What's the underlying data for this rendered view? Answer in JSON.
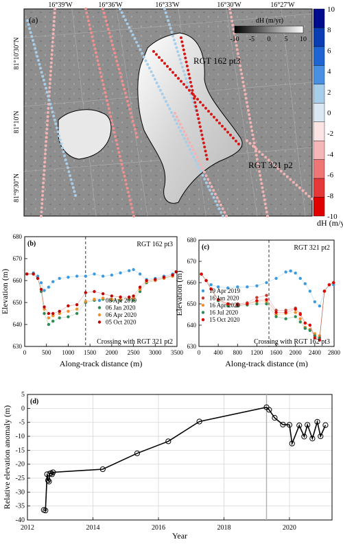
{
  "figure": {
    "panel_a": {
      "label": "(a)",
      "top_lon_labels": [
        "16°39'W",
        "16°36'W",
        "16°33'W",
        "16°30'W",
        "16°27'W"
      ],
      "left_lat_labels": [
        "81°10'30\"N",
        "81°10'N",
        "81°9'30\"N"
      ],
      "inset_colorbar_title": "dH (m/yr)",
      "inset_colorbar_ticks": [
        "-10",
        "-5",
        "0",
        "5",
        "10"
      ],
      "track_label_1": "RGT 162 pt3",
      "track_label_2": "RGT 321 p2",
      "colorbar_ticks": [
        "10",
        "8",
        "6",
        "4",
        "2",
        "0",
        "-2",
        "-4",
        "-6",
        "-8",
        "-10"
      ],
      "colorbar_colors": [
        "#000a8c",
        "#0a3cb4",
        "#1e64d2",
        "#4a90e2",
        "#a8cde9",
        "#d9e8f3",
        "#fbe4e4",
        "#f4b6b6",
        "#ee7676",
        "#e63838",
        "#e00000"
      ],
      "colorbar_title": "dH (m/yr)"
    }
  },
  "chart_data": [
    {
      "type": "scatter",
      "panel": "(b)",
      "annotation": "RGT 162 pt3",
      "crossing_label": "Crossing with RGT 321 pt2",
      "crossing_x": 1400,
      "xlabel": "Along-track distance (m)",
      "ylabel": "Elevation (m)",
      "xlim": [
        0,
        3500
      ],
      "ylim": [
        630,
        680
      ],
      "xticks": [
        0,
        500,
        1000,
        1500,
        2000,
        2500,
        3000,
        3500
      ],
      "yticks": [
        630,
        640,
        650,
        660,
        670,
        680
      ],
      "legend_position": "bottom-right",
      "series": [
        {
          "name": "08 Apr 2019",
          "color": "#3a9be0",
          "points": [
            [
              50,
              663
            ],
            [
              200,
              663.5
            ],
            [
              300,
              662
            ],
            [
              380,
              659
            ],
            [
              450,
              655.5
            ],
            [
              550,
              657
            ],
            [
              650,
              659.5
            ],
            [
              800,
              661
            ],
            [
              1000,
              661.5
            ],
            [
              1200,
              662
            ],
            [
              1400,
              662
            ],
            [
              1600,
              663
            ],
            [
              1800,
              662
            ],
            [
              2000,
              662.5
            ],
            [
              2200,
              663.5
            ],
            [
              2400,
              664.5
            ],
            [
              2500,
              665
            ],
            [
              2650,
              663
            ],
            [
              2800,
              660.5
            ],
            [
              3000,
              661
            ],
            [
              3200,
              662
            ],
            [
              3400,
              663
            ],
            [
              3480,
              664
            ]
          ]
        },
        {
          "name": "06 Jan 2020",
          "color": "#2e8b57",
          "points": [
            [
              50,
              663
            ],
            [
              200,
              663
            ],
            [
              300,
              661
            ],
            [
              380,
              655
            ],
            [
              450,
              645
            ],
            [
              550,
              640
            ],
            [
              650,
              641.5
            ],
            [
              800,
              643
            ],
            [
              1000,
              643.5
            ],
            [
              1200,
              645
            ],
            [
              1400,
              650
            ],
            [
              1600,
              651
            ],
            [
              1800,
              651.5
            ],
            [
              2000,
              651
            ],
            [
              2200,
              651
            ],
            [
              2400,
              651.5
            ],
            [
              2500,
              651
            ],
            [
              2650,
              655
            ],
            [
              2800,
              659
            ],
            [
              3000,
              660
            ],
            [
              3200,
              661
            ],
            [
              3400,
              662
            ],
            [
              3480,
              664
            ]
          ]
        },
        {
          "name": "06 Apr 2020",
          "color": "#f28c28",
          "points": [
            [
              50,
              663
            ],
            [
              200,
              663
            ],
            [
              300,
              661
            ],
            [
              380,
              656
            ],
            [
              450,
              647
            ],
            [
              550,
              643
            ],
            [
              650,
              644
            ],
            [
              800,
              645
            ],
            [
              1000,
              646
            ],
            [
              1200,
              647
            ],
            [
              1400,
              650.5
            ],
            [
              1600,
              651.5
            ],
            [
              1800,
              652
            ],
            [
              2000,
              651.5
            ],
            [
              2200,
              651.5
            ],
            [
              2400,
              652
            ],
            [
              2500,
              652
            ],
            [
              2650,
              656
            ],
            [
              2800,
              659.5
            ],
            [
              3000,
              660
            ],
            [
              3200,
              661
            ],
            [
              3400,
              662
            ],
            [
              3480,
              664
            ]
          ]
        },
        {
          "name": "05 Oct 2020",
          "color": "#c00000",
          "points": [
            [
              50,
              663
            ],
            [
              200,
              663
            ],
            [
              300,
              661
            ],
            [
              380,
              656
            ],
            [
              450,
              648
            ],
            [
              550,
              645
            ],
            [
              650,
              645
            ],
            [
              800,
              646
            ],
            [
              1000,
              648.5
            ],
            [
              1200,
              649
            ],
            [
              1400,
              654.5
            ],
            [
              1600,
              655
            ],
            [
              1800,
              654
            ],
            [
              2000,
              653
            ],
            [
              2200,
              652.5
            ],
            [
              2400,
              652.5
            ],
            [
              2500,
              653
            ],
            [
              2650,
              657
            ],
            [
              2800,
              660
            ],
            [
              3000,
              660.5
            ],
            [
              3200,
              661.5
            ],
            [
              3400,
              662.5
            ],
            [
              3480,
              664
            ]
          ]
        }
      ]
    },
    {
      "type": "scatter",
      "panel": "(c)",
      "annotation": "RGT 321 pt2",
      "crossing_label": "Crossing with RGT 162 pt3",
      "crossing_x": 1450,
      "xlabel": "Along-track distance (m)",
      "ylabel": "Elevation (m)",
      "xlim": [
        0,
        2800
      ],
      "ylim": [
        630,
        680
      ],
      "xticks": [
        0,
        400,
        800,
        1200,
        1600,
        2000,
        2400,
        2800
      ],
      "yticks": [
        630,
        640,
        650,
        660,
        670,
        680
      ],
      "legend_position": "bottom-left",
      "series": [
        {
          "name": "19 Apr 2019",
          "color": "#3a9be0",
          "points": [
            [
              50,
              664
            ],
            [
              150,
              661
            ],
            [
              250,
              659
            ],
            [
              400,
              658
            ],
            [
              600,
              657.5
            ],
            [
              800,
              658
            ],
            [
              1000,
              658
            ],
            [
              1200,
              658.5
            ],
            [
              1400,
              660
            ],
            [
              1600,
              662
            ],
            [
              1800,
              665
            ],
            [
              1900,
              665.5
            ],
            [
              2000,
              664.5
            ],
            [
              2100,
              662
            ],
            [
              2200,
              659.5
            ],
            [
              2300,
              656
            ],
            [
              2400,
              651
            ],
            [
              2500,
              649
            ],
            [
              2600,
              656
            ],
            [
              2700,
              659
            ],
            [
              2790,
              659
            ]
          ]
        },
        {
          "name": "16 Jan 2020",
          "color": "#c0392b",
          "points": [
            [
              50,
              664
            ],
            [
              150,
              661
            ],
            [
              250,
              657
            ],
            [
              400,
              652
            ],
            [
              600,
              650
            ],
            [
              800,
              650
            ],
            [
              1000,
              650.5
            ],
            [
              1200,
              653
            ],
            [
              1400,
              654
            ],
            [
              1600,
              647
            ],
            [
              1800,
              647
            ],
            [
              2000,
              648
            ],
            [
              2100,
              645.5
            ],
            [
              2200,
              641
            ],
            [
              2300,
              640
            ],
            [
              2400,
              635
            ],
            [
              2500,
              634
            ],
            [
              2600,
              656
            ],
            [
              2700,
              659
            ],
            [
              2790,
              660
            ]
          ]
        },
        {
          "name": "16 Apr 2020",
          "color": "#f28c28",
          "points": [
            [
              50,
              664
            ],
            [
              150,
              661
            ],
            [
              250,
              657
            ],
            [
              400,
              652
            ],
            [
              600,
              649.5
            ],
            [
              800,
              649.5
            ],
            [
              1000,
              650
            ],
            [
              1200,
              651
            ],
            [
              1400,
              651
            ],
            [
              1600,
              645
            ],
            [
              1800,
              645.5
            ],
            [
              2000,
              646
            ],
            [
              2100,
              643
            ],
            [
              2200,
              639
            ],
            [
              2300,
              638
            ],
            [
              2400,
              636
            ],
            [
              2500,
              635
            ],
            [
              2600,
              656
            ],
            [
              2700,
              659
            ],
            [
              2790,
              660
            ]
          ]
        },
        {
          "name": "16 Jul 2020",
          "color": "#2e8b57",
          "points": [
            [
              50,
              664
            ],
            [
              150,
              661
            ],
            [
              250,
              657
            ],
            [
              400,
              651.5
            ],
            [
              600,
              649
            ],
            [
              800,
              649
            ],
            [
              1000,
              649.5
            ],
            [
              1200,
              650
            ],
            [
              1400,
              650
            ],
            [
              1600,
              644
            ],
            [
              1800,
              643
            ],
            [
              2000,
              644
            ],
            [
              2100,
              641.5
            ],
            [
              2200,
              638.5
            ],
            [
              2300,
              637.5
            ],
            [
              2400,
              635
            ],
            [
              2500,
              634
            ],
            [
              2600,
              656
            ],
            [
              2700,
              659
            ],
            [
              2790,
              660
            ]
          ]
        },
        {
          "name": "15 Oct 2020",
          "color": "#e00000",
          "points": [
            [
              50,
              664
            ],
            [
              150,
              661
            ],
            [
              250,
              657
            ],
            [
              400,
              652
            ],
            [
              600,
              650
            ],
            [
              800,
              649.5
            ],
            [
              1000,
              650
            ],
            [
              1200,
              651.5
            ],
            [
              1400,
              652
            ],
            [
              1600,
              646
            ],
            [
              1800,
              646
            ],
            [
              2000,
              647.5
            ],
            [
              2100,
              645
            ],
            [
              2200,
              641
            ],
            [
              2300,
              640
            ],
            [
              2400,
              634
            ],
            [
              2500,
              633
            ],
            [
              2600,
              656
            ],
            [
              2700,
              659
            ],
            [
              2790,
              660
            ]
          ]
        }
      ]
    },
    {
      "type": "line",
      "panel": "(d)",
      "xlabel": "Year",
      "ylabel": "Relative elevation anomaly (m)",
      "xlim": [
        2012,
        2021.3
      ],
      "ylim": [
        -40,
        5
      ],
      "xticks": [
        2012,
        2014,
        2016,
        2018,
        2020
      ],
      "yticks": [
        5,
        0,
        -5,
        -10,
        -15,
        -20,
        -25,
        -30,
        -35,
        -40
      ],
      "vertical_line_x": 2019.3,
      "grid": true,
      "series": [
        {
          "name": "",
          "color": "#000000",
          "points": [
            [
              2012.5,
              -36.4
            ],
            [
              2012.55,
              -36.6
            ],
            [
              2012.6,
              -23.6
            ],
            [
              2012.63,
              -25.8
            ],
            [
              2012.66,
              -26.2
            ],
            [
              2012.68,
              -23.4
            ],
            [
              2012.72,
              -23.2
            ],
            [
              2012.75,
              -23.6
            ],
            [
              2012.78,
              -22.9
            ],
            [
              2014.3,
              -21.8
            ],
            [
              2015.35,
              -16.1
            ],
            [
              2016.3,
              -11.8
            ],
            [
              2017.25,
              -4.7
            ],
            [
              2019.3,
              0.4
            ],
            [
              2019.38,
              -0.5
            ],
            [
              2019.55,
              -3.4
            ],
            [
              2019.8,
              -5.8
            ],
            [
              2020.0,
              -5.9
            ],
            [
              2020.08,
              -12.6
            ],
            [
              2020.3,
              -6.1
            ],
            [
              2020.45,
              -10.1
            ],
            [
              2020.55,
              -5.9
            ],
            [
              2020.7,
              -10.8
            ],
            [
              2020.85,
              -4.8
            ],
            [
              2020.95,
              -10.0
            ],
            [
              2021.1,
              -6.0
            ]
          ]
        }
      ]
    }
  ]
}
